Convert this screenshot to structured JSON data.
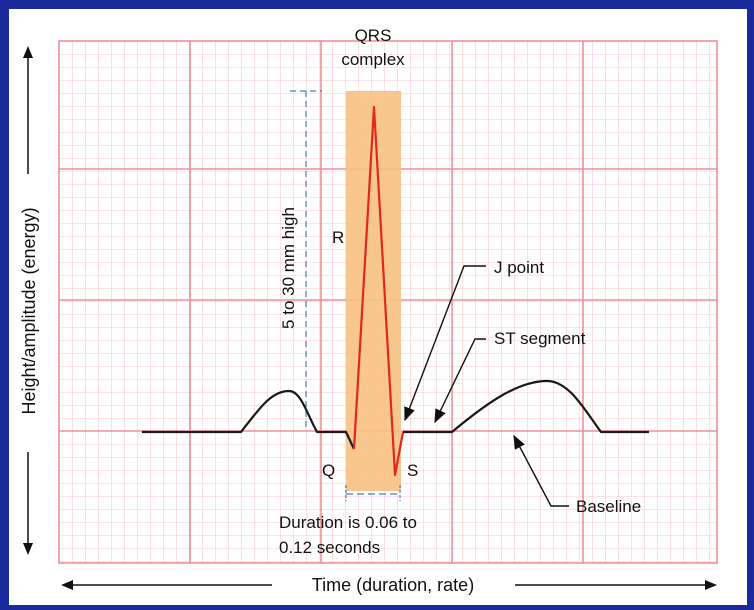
{
  "labels": {
    "qrs_line1": "QRS",
    "qrs_line2": "complex",
    "amplitude": "5 to 30 mm high",
    "r": "R",
    "q": "Q",
    "s": "S",
    "j_point": "J point",
    "st_segment": "ST segment",
    "baseline": "Baseline",
    "duration_line1": "Duration is 0.06 to",
    "duration_line2": "0.12 seconds",
    "y_axis": "Height/amplitude (energy)",
    "x_axis": "Time (duration, rate)"
  },
  "colors": {
    "grid": "#f2a0a8",
    "qrs_band": "#f7c183",
    "qrs_waveform": "#e0281e",
    "waveform": "#1a1a1a",
    "background_border": "#1a2a9c"
  }
}
